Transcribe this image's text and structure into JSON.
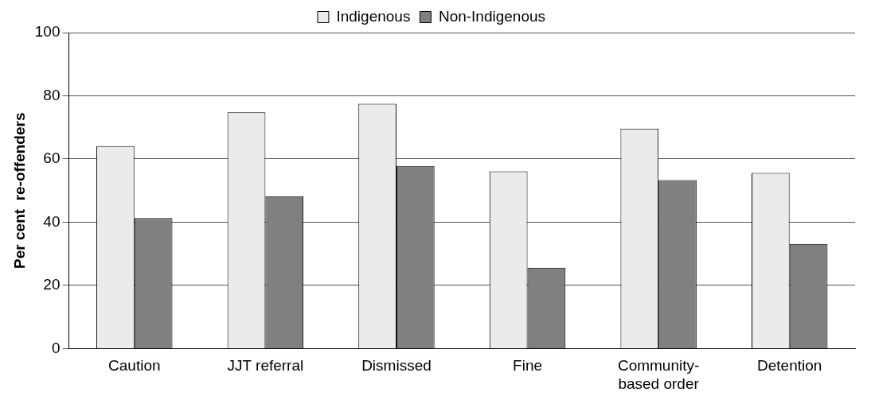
{
  "chart_data": {
    "type": "bar",
    "ylabel": "Per cent  re-offenders",
    "categories": [
      "Caution",
      "JJT referral",
      "Dismissed",
      "Fine",
      "Community-based order",
      "Detention"
    ],
    "series": [
      {
        "name": "Indigenous",
        "color": "#ebebeb",
        "values": [
          64.1,
          74.8,
          77.5,
          56.1,
          69.6,
          55.6
        ]
      },
      {
        "name": "Non-Indigenous",
        "color": "#808080",
        "values": [
          41.3,
          48.2,
          57.8,
          25.6,
          53.3,
          33.1
        ]
      }
    ],
    "ylim": [
      0,
      100
    ],
    "yticks": [
      0,
      20,
      40,
      60,
      80,
      100
    ],
    "grid": "y",
    "legend": "top"
  }
}
